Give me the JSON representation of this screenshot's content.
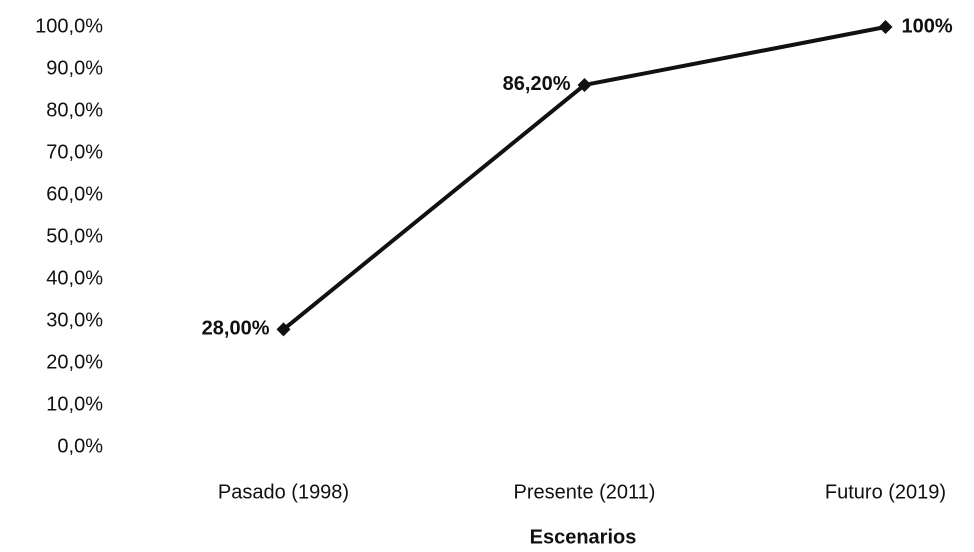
{
  "chart_data": {
    "type": "line",
    "x_label": "Escenarios",
    "categories": [
      "Pasado (1998)",
      "Presente (2011)",
      "Futuro (2019)"
    ],
    "series": [
      {
        "name": "Escenarios",
        "color": "#111111",
        "values": [
          28,
          86.2,
          100
        ],
        "value_labels": [
          "28,00%",
          "86,20%",
          "100%"
        ]
      }
    ],
    "ylim": [
      0,
      100
    ],
    "yticks": [
      {
        "value": 0,
        "label": "0,0%"
      },
      {
        "value": 10,
        "label": "10,0%"
      },
      {
        "value": 20,
        "label": "20,0%"
      },
      {
        "value": 30,
        "label": "30,0%"
      },
      {
        "value": 40,
        "label": "40,0%"
      },
      {
        "value": 50,
        "label": "50,0%"
      },
      {
        "value": 60,
        "label": "60,0%"
      },
      {
        "value": 70,
        "label": "70,0%"
      },
      {
        "value": 80,
        "label": "80,0%"
      },
      {
        "value": 90,
        "label": "90,0%"
      },
      {
        "value": 100,
        "label": "100,0%"
      }
    ],
    "grid": false
  }
}
